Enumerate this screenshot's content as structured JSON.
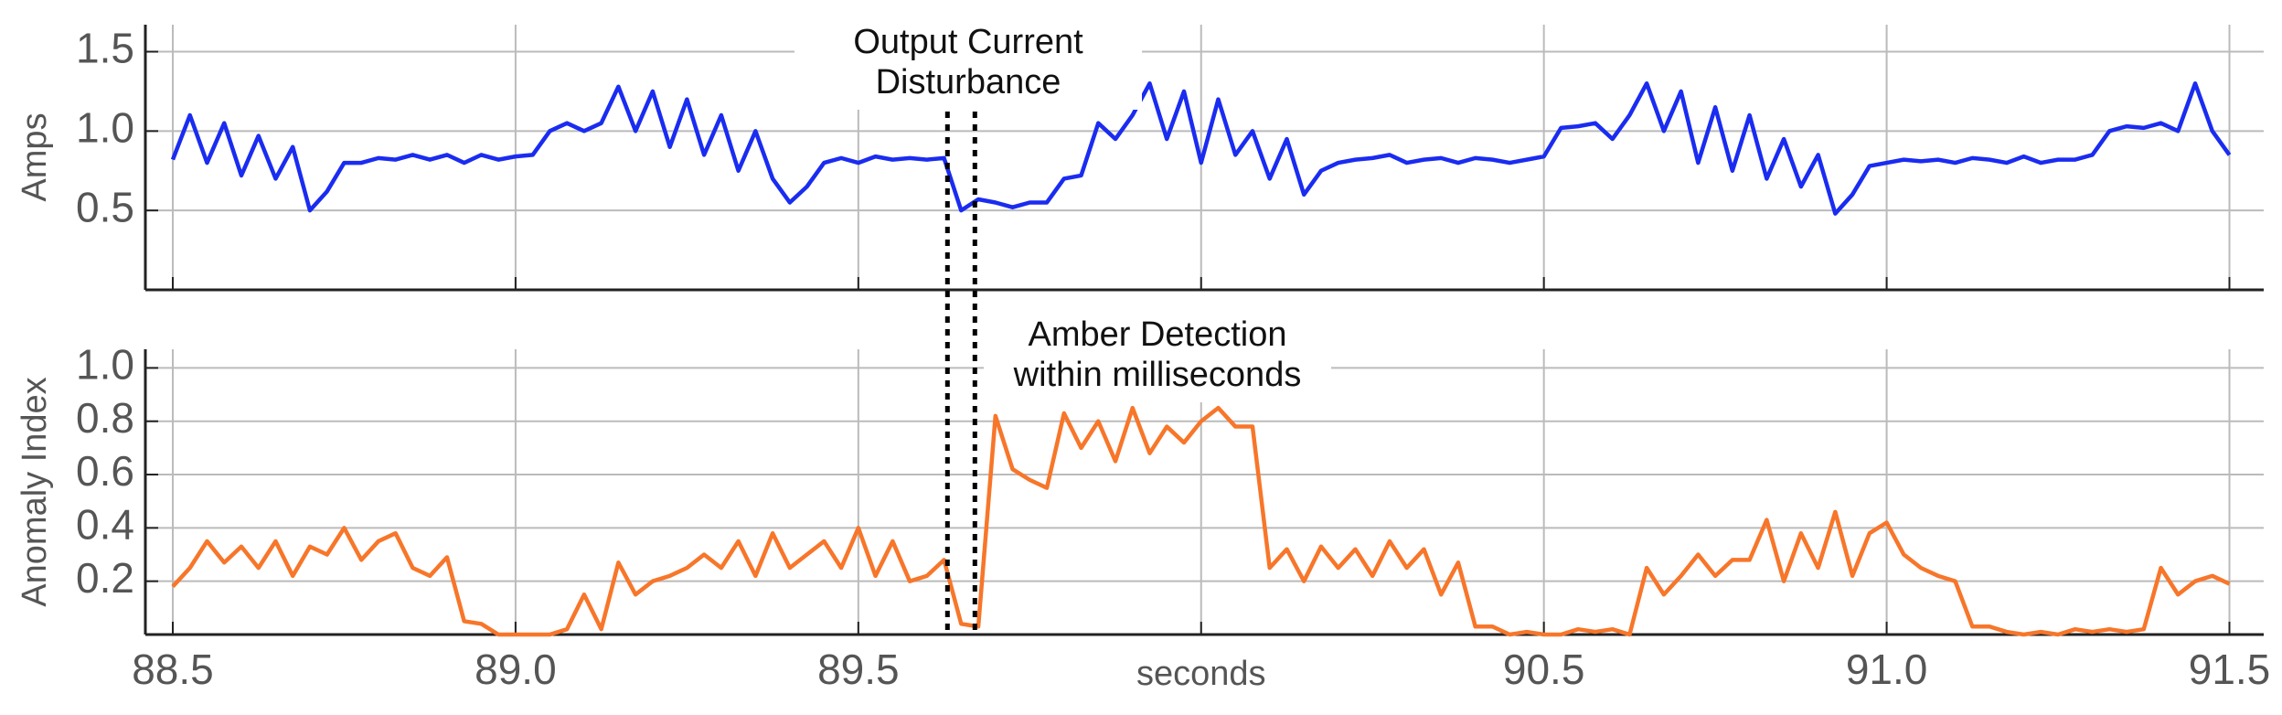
{
  "chart_data": [
    {
      "type": "line",
      "ylabel": "Amps",
      "annotation": [
        "Output Current",
        "Disturbance"
      ],
      "vlines": [
        89.63,
        89.67
      ],
      "xlim": [
        88.46,
        91.55
      ],
      "xticks": [
        88.5,
        89,
        89.5,
        90,
        90.5,
        91,
        91.5
      ],
      "ylim": [
        0,
        1.67
      ],
      "yticks": [
        0.5,
        {
          "value": 1,
          "label": "1.0"
        },
        1.5
      ],
      "grid": true,
      "x": [
        88.5,
        88.525,
        88.55,
        88.575,
        88.6,
        88.625,
        88.65,
        88.675,
        88.7,
        88.725,
        88.75,
        88.775,
        88.8,
        88.825,
        88.85,
        88.875,
        88.9,
        88.925,
        88.95,
        88.975,
        89,
        89.025,
        89.05,
        89.075,
        89.1,
        89.125,
        89.15,
        89.175,
        89.2,
        89.225,
        89.25,
        89.275,
        89.3,
        89.325,
        89.35,
        89.375,
        89.4,
        89.425,
        89.45,
        89.475,
        89.5,
        89.525,
        89.55,
        89.575,
        89.6,
        89.625,
        89.65,
        89.675,
        89.7,
        89.725,
        89.75,
        89.775,
        89.8,
        89.825,
        89.85,
        89.875,
        89.9,
        89.925,
        89.95,
        89.975,
        90,
        90.025,
        90.05,
        90.075,
        90.1,
        90.125,
        90.15,
        90.175,
        90.2,
        90.225,
        90.25,
        90.275,
        90.3,
        90.325,
        90.35,
        90.375,
        90.4,
        90.425,
        90.45,
        90.475,
        90.5,
        90.525,
        90.55,
        90.575,
        90.6,
        90.625,
        90.65,
        90.675,
        90.7,
        90.725,
        90.75,
        90.775,
        90.8,
        90.825,
        90.85,
        90.875,
        90.9,
        90.925,
        90.95,
        90.975,
        91,
        91.025,
        91.05,
        91.075,
        91.1,
        91.125,
        91.15,
        91.175,
        91.2,
        91.225,
        91.25,
        91.275,
        91.3,
        91.325,
        91.35,
        91.375,
        91.4,
        91.425,
        91.45,
        91.475,
        91.5
      ],
      "series": [
        {
          "color": "#1a2cf0",
          "values": [
            0.82,
            1.1,
            0.8,
            1.05,
            0.72,
            0.97,
            0.7,
            0.9,
            0.5,
            0.62,
            0.8,
            0.8,
            0.83,
            0.82,
            0.85,
            0.82,
            0.85,
            0.8,
            0.85,
            0.82,
            0.84,
            0.85,
            1.0,
            1.05,
            1.0,
            1.05,
            1.28,
            1.0,
            1.25,
            0.9,
            1.2,
            0.85,
            1.1,
            0.75,
            1.0,
            0.7,
            0.55,
            0.65,
            0.8,
            0.83,
            0.8,
            0.84,
            0.82,
            0.83,
            0.82,
            0.83,
            0.5,
            0.57,
            0.55,
            0.52,
            0.55,
            0.55,
            0.7,
            0.72,
            1.05,
            0.95,
            1.1,
            1.3,
            0.95,
            1.25,
            0.8,
            1.2,
            0.85,
            1.0,
            0.7,
            0.95,
            0.6,
            0.75,
            0.8,
            0.82,
            0.83,
            0.85,
            0.8,
            0.82,
            0.83,
            0.8,
            0.83,
            0.82,
            0.8,
            0.82,
            0.84,
            1.02,
            1.03,
            1.05,
            0.95,
            1.1,
            1.3,
            1.0,
            1.25,
            0.8,
            1.15,
            0.75,
            1.1,
            0.7,
            0.95,
            0.65,
            0.85,
            0.48,
            0.6,
            0.78,
            0.8,
            0.82,
            0.81,
            0.82,
            0.8,
            0.83,
            0.82,
            0.8,
            0.84,
            0.8,
            0.82,
            0.82,
            0.85,
            1.0,
            1.03,
            1.02,
            1.05,
            1.0,
            1.3,
            1.0,
            0.85
          ]
        }
      ]
    },
    {
      "type": "line",
      "ylabel": "Anomaly Index",
      "xlabel": "seconds",
      "annotation": [
        "Amber Detection",
        "within milliseconds"
      ],
      "xlim": [
        88.46,
        91.55
      ],
      "xticks": [
        88.5,
        {
          "value": 89,
          "label": "89.0"
        },
        89.5,
        {
          "value": 90,
          "label": null
        },
        90.5,
        {
          "value": 91,
          "label": "91.0"
        },
        91.5
      ],
      "ylim": [
        0,
        1.07
      ],
      "yticks": [
        0.2,
        0.4,
        0.6,
        0.8,
        {
          "value": 1,
          "label": "1.0"
        }
      ],
      "grid": true,
      "x": [
        88.5,
        88.525,
        88.55,
        88.575,
        88.6,
        88.625,
        88.65,
        88.675,
        88.7,
        88.725,
        88.75,
        88.775,
        88.8,
        88.825,
        88.85,
        88.875,
        88.9,
        88.925,
        88.95,
        88.975,
        89,
        89.025,
        89.05,
        89.075,
        89.1,
        89.125,
        89.15,
        89.175,
        89.2,
        89.225,
        89.25,
        89.275,
        89.3,
        89.325,
        89.35,
        89.375,
        89.4,
        89.425,
        89.45,
        89.475,
        89.5,
        89.525,
        89.55,
        89.575,
        89.6,
        89.625,
        89.65,
        89.675,
        89.7,
        89.725,
        89.75,
        89.775,
        89.8,
        89.825,
        89.85,
        89.875,
        89.9,
        89.925,
        89.95,
        89.975,
        90,
        90.025,
        90.05,
        90.075,
        90.1,
        90.125,
        90.15,
        90.175,
        90.2,
        90.225,
        90.25,
        90.275,
        90.3,
        90.325,
        90.35,
        90.375,
        90.4,
        90.425,
        90.45,
        90.475,
        90.5,
        90.525,
        90.55,
        90.575,
        90.6,
        90.625,
        90.65,
        90.675,
        90.7,
        90.725,
        90.75,
        90.775,
        90.8,
        90.825,
        90.85,
        90.875,
        90.9,
        90.925,
        90.95,
        90.975,
        91,
        91.025,
        91.05,
        91.075,
        91.1,
        91.125,
        91.15,
        91.175,
        91.2,
        91.225,
        91.25,
        91.275,
        91.3,
        91.325,
        91.35,
        91.375,
        91.4,
        91.425,
        91.45,
        91.475,
        91.5
      ],
      "series": [
        {
          "color": "#f7762a",
          "values": [
            0.18,
            0.25,
            0.35,
            0.27,
            0.33,
            0.25,
            0.35,
            0.22,
            0.33,
            0.3,
            0.4,
            0.28,
            0.35,
            0.38,
            0.25,
            0.22,
            0.29,
            0.05,
            0.04,
            0.0,
            0.0,
            0.0,
            0.0,
            0.02,
            0.15,
            0.02,
            0.27,
            0.15,
            0.2,
            0.22,
            0.25,
            0.3,
            0.25,
            0.35,
            0.22,
            0.38,
            0.25,
            0.3,
            0.35,
            0.25,
            0.4,
            0.22,
            0.35,
            0.2,
            0.22,
            0.28,
            0.04,
            0.03,
            0.82,
            0.62,
            0.58,
            0.55,
            0.83,
            0.7,
            0.8,
            0.65,
            0.85,
            0.68,
            0.78,
            0.72,
            0.8,
            0.85,
            0.78,
            0.78,
            0.25,
            0.32,
            0.2,
            0.33,
            0.25,
            0.32,
            0.22,
            0.35,
            0.25,
            0.32,
            0.15,
            0.27,
            0.03,
            0.03,
            0.0,
            0.01,
            0.0,
            0.0,
            0.02,
            0.01,
            0.02,
            0.0,
            0.25,
            0.15,
            0.22,
            0.3,
            0.22,
            0.28,
            0.28,
            0.43,
            0.2,
            0.38,
            0.25,
            0.46,
            0.22,
            0.38,
            0.42,
            0.3,
            0.25,
            0.22,
            0.2,
            0.03,
            0.03,
            0.01,
            0.0,
            0.01,
            0.0,
            0.02,
            0.01,
            0.02,
            0.01,
            0.02,
            0.25,
            0.15,
            0.2,
            0.22,
            0.19
          ]
        }
      ]
    }
  ]
}
